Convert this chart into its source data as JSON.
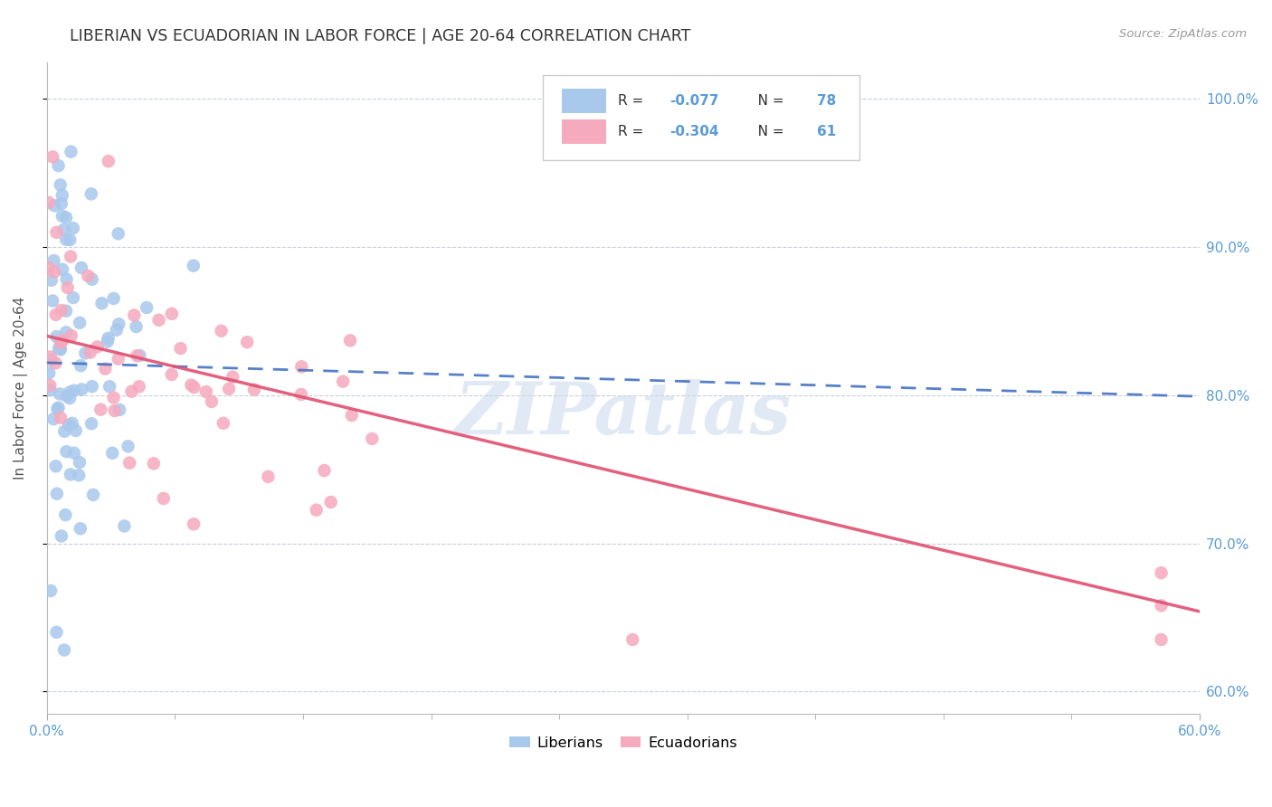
{
  "title": "LIBERIAN VS ECUADORIAN IN LABOR FORCE | AGE 20-64 CORRELATION CHART",
  "source": "Source: ZipAtlas.com",
  "ylabel": "In Labor Force | Age 20-64",
  "yticks": [
    0.6,
    0.7,
    0.8,
    0.9,
    1.0
  ],
  "ytick_labels": [
    "60.0%",
    "70.0%",
    "80.0%",
    "90.0%",
    "100.0%"
  ],
  "xmin": 0.0,
  "xmax": 0.6,
  "ymin": 0.585,
  "ymax": 1.025,
  "liberian_R": -0.077,
  "liberian_N": 78,
  "ecuadorian_R": -0.304,
  "ecuadorian_N": 61,
  "blue_color": "#A8C8EC",
  "pink_color": "#F5AABE",
  "blue_line_color": "#4472C4",
  "pink_line_color": "#E05070",
  "blue_dot_edge": "none",
  "pink_dot_edge": "none",
  "watermark": "ZIPatlas",
  "watermark_color": "#C8D8EC",
  "lib_intercept": 0.822,
  "lib_slope": -0.038,
  "ecu_intercept": 0.84,
  "ecu_slope": -0.31
}
